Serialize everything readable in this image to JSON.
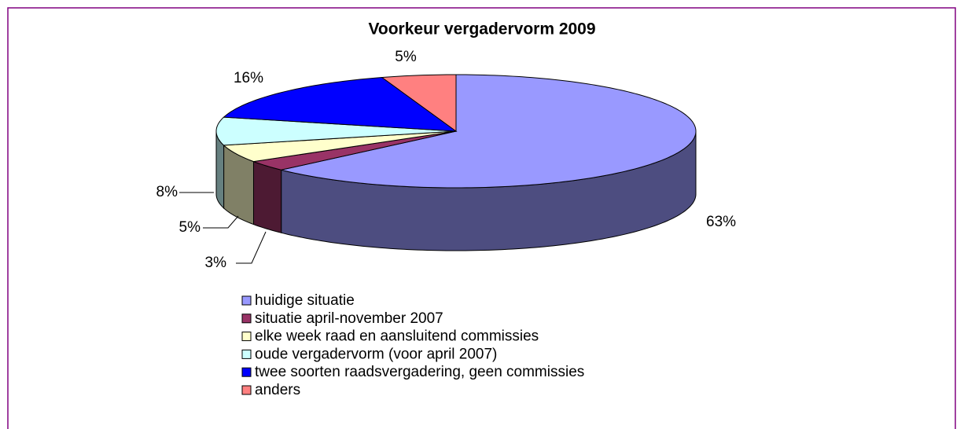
{
  "chart_data": {
    "type": "pie3d",
    "title": "Voorkeur vergadervorm 2009",
    "categories": [
      "huidige situatie",
      "situatie april-november 2007",
      "elke week raad en aansluitend commissies",
      "oude vergadervorm (voor april 2007)",
      "twee soorten raadsvergadering, geen commissies",
      "anders"
    ],
    "values": [
      63,
      3,
      5,
      8,
      16,
      5
    ],
    "value_labels": [
      "63%",
      "3%",
      "5%",
      "8%",
      "16%",
      "5%"
    ],
    "colors": [
      "#9999ff",
      "#993366",
      "#ffffcc",
      "#ccffff",
      "#0000ff",
      "#ff8080"
    ],
    "legend": "bottom"
  }
}
